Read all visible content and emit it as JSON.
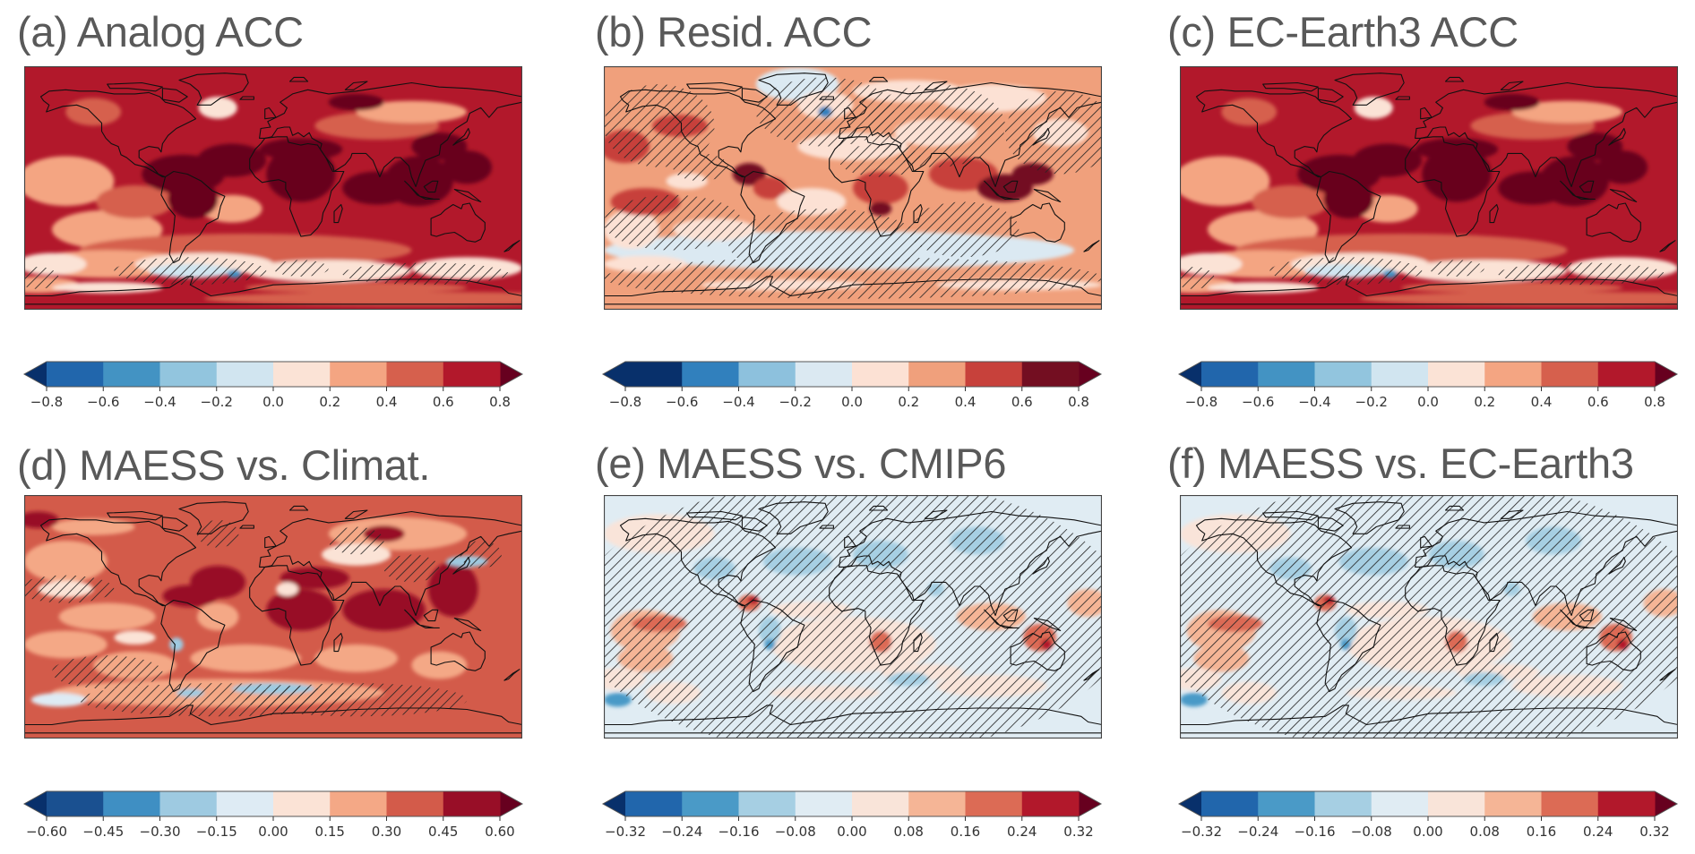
{
  "figure": {
    "panels": [
      {
        "id": "a",
        "title": "(a) Analog ACC",
        "map_type": "acc",
        "colorbar_key": "cb_acc_light"
      },
      {
        "id": "b",
        "title": "(b) Resid. ACC",
        "map_type": "resid",
        "colorbar_key": "cb_acc_dark"
      },
      {
        "id": "c",
        "title": "(c) EC-Earth3 ACC",
        "map_type": "acc",
        "colorbar_key": "cb_acc_light"
      },
      {
        "id": "d",
        "title": "(d) MAESS vs. Climat.",
        "map_type": "climat",
        "colorbar_key": "cb_maess_climat"
      },
      {
        "id": "e",
        "title": "(e) MAESS vs. CMIP6",
        "map_type": "diff",
        "colorbar_key": "cb_diff"
      },
      {
        "id": "f",
        "title": "(f) MAESS vs. EC-Earth3",
        "map_type": "diff",
        "colorbar_key": "cb_diff"
      }
    ]
  },
  "chart_data": [
    {
      "type": "heatmap",
      "panel": "a",
      "title": "(a) Analog ACC",
      "projection": "global lat-lon map",
      "hatching": "insignificant regions (mainly Southern Ocean)",
      "colorbar": {
        "ticks": [
          "−0.8",
          "−0.6",
          "−0.4",
          "−0.2",
          "0.0",
          "0.2",
          "0.4",
          "0.6",
          "0.8"
        ],
        "levels": [
          -0.8,
          -0.6,
          -0.4,
          -0.2,
          0.0,
          0.2,
          0.4,
          0.6,
          0.8
        ],
        "extend": "both",
        "colors": [
          "#08306b",
          "#2166ac",
          "#4393c3",
          "#92c5de",
          "#d1e5f0",
          "#fbe3d6",
          "#f4a582",
          "#d6604d",
          "#b2182b",
          "#67001f"
        ]
      },
      "dominant_range": [
        0.4,
        0.8
      ]
    },
    {
      "type": "heatmap",
      "panel": "b",
      "title": "(b) Resid. ACC",
      "projection": "global lat-lon map",
      "hatching": "widespread, most of domain",
      "colorbar": {
        "ticks": [
          "−0.8",
          "−0.6",
          "−0.4",
          "−0.2",
          "0.0",
          "0.2",
          "0.4",
          "0.6",
          "0.8"
        ],
        "levels": [
          -0.8,
          -0.6,
          -0.4,
          -0.2,
          0.0,
          0.2,
          0.4,
          0.6,
          0.8
        ],
        "extend": "both",
        "colors": [
          "#08306b",
          "#08306b",
          "#3180bd",
          "#8dc1dd",
          "#dbe9f2",
          "#fce1d4",
          "#f0a07c",
          "#c7413b",
          "#730e21",
          "#67001f"
        ]
      },
      "dominant_range": [
        0.0,
        0.6
      ]
    },
    {
      "type": "heatmap",
      "panel": "c",
      "title": "(c) EC-Earth3 ACC",
      "projection": "global lat-lon map",
      "hatching": "Southern Ocean patches",
      "colorbar": {
        "ticks": [
          "−0.8",
          "−0.6",
          "−0.4",
          "−0.2",
          "0.0",
          "0.2",
          "0.4",
          "0.6",
          "0.8"
        ],
        "levels": [
          -0.8,
          -0.6,
          -0.4,
          -0.2,
          0.0,
          0.2,
          0.4,
          0.6,
          0.8
        ],
        "extend": "both",
        "colors": [
          "#08306b",
          "#2166ac",
          "#4393c3",
          "#92c5de",
          "#d1e5f0",
          "#fbe3d6",
          "#f4a582",
          "#d6604d",
          "#b2182b",
          "#67001f"
        ]
      },
      "dominant_range": [
        0.4,
        0.8
      ]
    },
    {
      "type": "heatmap",
      "panel": "d",
      "title": "(d) MAESS vs. Climat.",
      "projection": "global lat-lon map",
      "hatching": "Southern Ocean and scattered oceans",
      "colorbar": {
        "ticks": [
          "−0.60",
          "−0.45",
          "−0.30",
          "−0.15",
          "0.00",
          "0.15",
          "0.30",
          "0.45",
          "0.60"
        ],
        "levels": [
          -0.6,
          -0.45,
          -0.3,
          -0.15,
          0.0,
          0.15,
          0.3,
          0.45,
          0.6
        ],
        "extend": "both",
        "colors": [
          "#08306b",
          "#1a5090",
          "#3f8fc3",
          "#9ecae1",
          "#deebf4",
          "#fbe3d6",
          "#f4a886",
          "#d35b4a",
          "#980e27",
          "#67001f"
        ]
      },
      "dominant_range": [
        0.15,
        0.6
      ]
    },
    {
      "type": "heatmap",
      "panel": "e",
      "title": "(e) MAESS vs. CMIP6",
      "projection": "global lat-lon map",
      "hatching": "nearly entire domain",
      "colorbar": {
        "ticks": [
          "−0.32",
          "−0.24",
          "−0.16",
          "−0.08",
          "0.00",
          "0.08",
          "0.16",
          "0.24",
          "0.32"
        ],
        "levels": [
          -0.32,
          -0.24,
          -0.16,
          -0.08,
          0.0,
          0.08,
          0.16,
          0.24,
          0.32
        ],
        "extend": "both",
        "colors": [
          "#08306b",
          "#2166ac",
          "#4a9ac7",
          "#a6cfe3",
          "#e0ecf3",
          "#f9e4d9",
          "#f5b596",
          "#dc6b55",
          "#b2182b",
          "#67001f"
        ]
      },
      "dominant_range": [
        -0.08,
        0.16
      ]
    },
    {
      "type": "heatmap",
      "panel": "f",
      "title": "(f) MAESS vs. EC-Earth3",
      "projection": "global lat-lon map",
      "hatching": "nearly entire domain",
      "colorbar": {
        "ticks": [
          "−0.32",
          "−0.24",
          "−0.16",
          "−0.08",
          "0.00",
          "0.08",
          "0.16",
          "0.24",
          "0.32"
        ],
        "levels": [
          -0.32,
          -0.24,
          -0.16,
          -0.08,
          0.0,
          0.08,
          0.16,
          0.24,
          0.32
        ],
        "extend": "both",
        "colors": [
          "#08306b",
          "#2166ac",
          "#4a9ac7",
          "#a6cfe3",
          "#e0ecf3",
          "#f9e4d9",
          "#f5b596",
          "#dc6b55",
          "#b2182b",
          "#67001f"
        ]
      },
      "dominant_range": [
        -0.08,
        0.16
      ]
    }
  ],
  "style": {
    "title_color": "#595959",
    "coast_color": "#111111",
    "hatch_color": "#222222",
    "frame_color": "#444444"
  }
}
